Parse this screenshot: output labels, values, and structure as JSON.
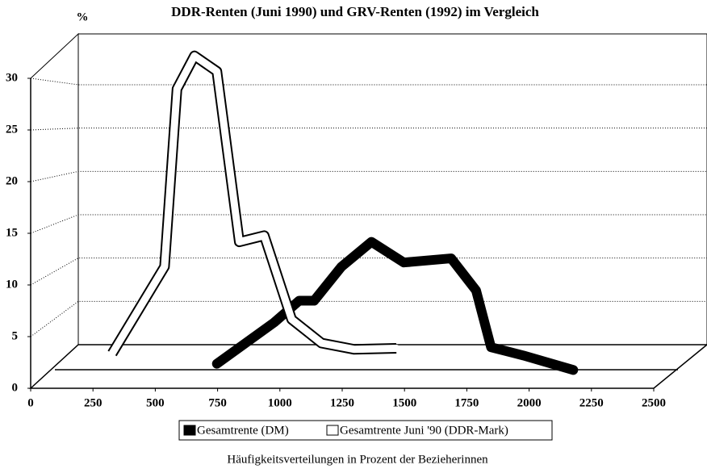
{
  "chart_data": {
    "type": "line",
    "title": "DDR-Renten (Juni 1990) und GRV-Renten (1992) im Vergleich",
    "y_label": "%",
    "x_label": "Häufigkeitsverteilungen in Prozent der Bezieherinnen",
    "xlim": [
      0,
      2500
    ],
    "xticks": [
      0,
      250,
      500,
      750,
      1000,
      1250,
      1500,
      1750,
      2000,
      2250,
      2500
    ],
    "ylim": [
      0,
      30
    ],
    "yticks": [
      0,
      5,
      10,
      15,
      20,
      25,
      30
    ],
    "grid": true,
    "legend": "bottom",
    "series": [
      {
        "name": "Gesamtrente (DM)",
        "color": "#000000",
        "x": [
          650,
          880,
          980,
          1040,
          1150,
          1270,
          1400,
          1590,
          1690,
          1750,
          1880,
          2080
        ],
        "values": [
          1.2,
          5.2,
          7.3,
          7.3,
          10.6,
          13,
          11,
          11.4,
          8.3,
          2.8,
          2,
          0.6
        ]
      },
      {
        "name": "Gesamtrente Juni '90 (DDR-Mark)",
        "color": "#ffffff",
        "x": [
          230,
          440,
          490,
          560,
          650,
          740,
          840,
          950,
          1070,
          1200,
          1370
        ],
        "values": [
          2.2,
          10.6,
          27.8,
          31,
          29.5,
          13,
          13.6,
          5.5,
          3.2,
          2.6,
          2.7
        ]
      }
    ]
  }
}
